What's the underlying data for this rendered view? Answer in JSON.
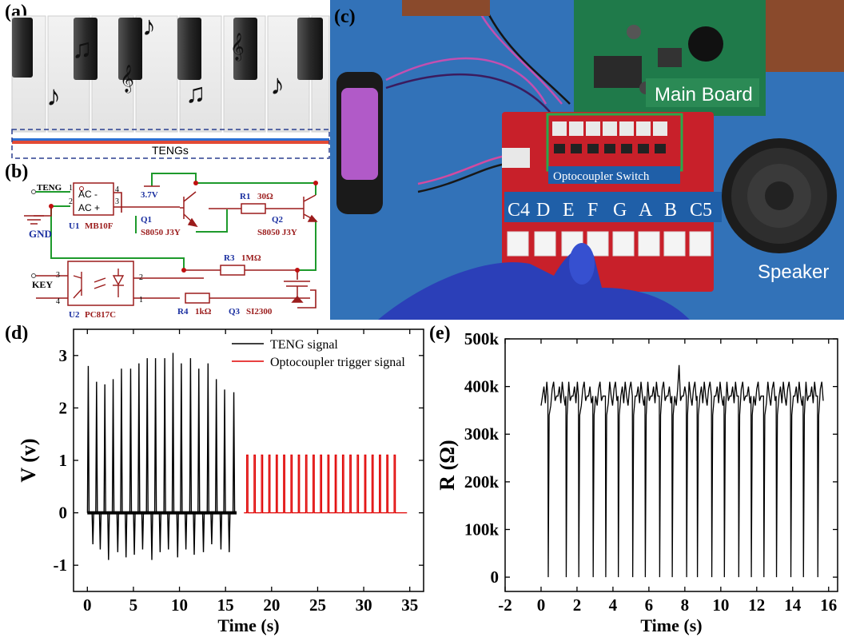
{
  "panel_labels": {
    "a": "(a)",
    "b": "(b)",
    "c": "(c)",
    "d": "(d)",
    "e": "(e)"
  },
  "panel_a": {
    "tengs_label": "TENGs",
    "icons": [
      "eighth-note-icon",
      "beamed-notes-icon",
      "treble-clef-icon"
    ]
  },
  "panel_b": {
    "teng_label": "TENG",
    "gnd_label": "GND",
    "key_label": "KEY",
    "supply_label": "3.7V",
    "u1": {
      "name": "U1",
      "part": "MB10F",
      "pins": [
        "1",
        "2",
        "3",
        "4"
      ],
      "ac_minus": "AC  -",
      "ac_plus": "AC  +"
    },
    "q1": {
      "name": "Q1",
      "part": "S8050 J3Y"
    },
    "q2": {
      "name": "Q2",
      "part": "S8050 J3Y"
    },
    "r1": {
      "name": "R1",
      "value": "30Ω"
    },
    "r3": {
      "name": "R3",
      "value": "1MΩ"
    },
    "r4": {
      "name": "R4",
      "value": "1kΩ"
    },
    "q3": {
      "name": "Q3",
      "part": "SI2300"
    },
    "u2": {
      "name": "U2",
      "part": "PC817C",
      "pins": [
        "1",
        "2",
        "3",
        "4"
      ]
    }
  },
  "panel_c": {
    "main_board_label": "Main Board",
    "optocoupler_label": "Optocoupler Switch",
    "speaker_label": "Speaker",
    "notes": [
      "C4",
      "D",
      "E",
      "F",
      "G",
      "A",
      "B",
      "C5"
    ],
    "colors": {
      "background": "#2f6fb3",
      "pcb_red": "#c8202a",
      "main_board_green": "#1f7a4a",
      "label_bg": "#1f5fa8"
    }
  },
  "chart_data": [
    {
      "panel": "d",
      "type": "line",
      "xlabel": "Time (s)",
      "ylabel": "V (v)",
      "xlim": [
        -1.5,
        36.5
      ],
      "ylim": [
        -1.5,
        3.5
      ],
      "xticks": [
        0,
        5,
        10,
        15,
        20,
        25,
        30,
        35
      ],
      "yticks": [
        -1,
        0,
        1,
        2,
        3
      ],
      "legend_position": "top-right",
      "series": [
        {
          "name": "TENG signal",
          "color": "#000000",
          "x": [
            0.1,
            0.6,
            1.0,
            1.4,
            1.9,
            2.3,
            2.8,
            3.3,
            3.7,
            4.2,
            4.7,
            5.1,
            5.6,
            6.0,
            6.5,
            7.0,
            7.4,
            7.9,
            8.4,
            8.8,
            9.3,
            9.8,
            10.2,
            10.7,
            11.2,
            11.6,
            12.1,
            12.6,
            13.1,
            13.5,
            14.0,
            14.5,
            14.9,
            15.4,
            15.9
          ],
          "peak": [
            2.8,
            -0.6,
            2.5,
            -0.7,
            2.45,
            -0.9,
            2.55,
            -0.75,
            2.75,
            -0.85,
            2.75,
            -0.8,
            2.85,
            -0.7,
            2.95,
            -0.9,
            2.95,
            -0.75,
            2.95,
            -0.7,
            3.05,
            -0.85,
            2.85,
            -0.7,
            2.95,
            -0.8,
            2.75,
            -0.75,
            2.85,
            -0.6,
            2.55,
            -0.7,
            2.35,
            -0.75,
            2.3
          ]
        },
        {
          "name": "Optocoupler trigger signal",
          "color": "#e00000",
          "x": [
            17.3,
            18.1,
            18.9,
            19.7,
            20.5,
            21.3,
            22.1,
            22.9,
            23.7,
            24.5,
            25.3,
            26.1,
            26.9,
            27.7,
            28.5,
            29.3,
            30.1,
            30.9,
            31.7,
            32.5,
            33.3
          ],
          "peak": [
            1.1,
            1.1,
            1.1,
            1.1,
            1.1,
            1.1,
            1.1,
            1.1,
            1.1,
            1.1,
            1.1,
            1.1,
            1.1,
            1.1,
            1.1,
            1.1,
            1.1,
            1.1,
            1.1,
            1.1,
            1.1
          ],
          "baseline": 0
        }
      ]
    },
    {
      "panel": "e",
      "type": "line",
      "xlabel": "Time (s)",
      "ylabel": "R (Ω)",
      "xlim": [
        -2,
        16.5
      ],
      "ylim": [
        -30000,
        500000
      ],
      "xticks": [
        -2,
        0,
        2,
        4,
        6,
        8,
        10,
        12,
        14,
        16
      ],
      "yticks": [
        0,
        100000,
        200000,
        300000,
        400000,
        500000
      ],
      "ytick_labels": [
        "0",
        "100k",
        "200k",
        "300k",
        "400k",
        "500k"
      ],
      "series": [
        {
          "color": "#000000",
          "baseline_high": 380000,
          "dip_times": [
            0.4,
            1.4,
            2.1,
            2.9,
            3.6,
            4.3,
            5.1,
            5.8,
            6.6,
            7.3,
            8.1,
            8.7,
            9.5,
            10.2,
            11.0,
            11.7,
            12.4,
            13.1,
            13.9,
            14.6,
            15.4
          ],
          "dip_value": 0,
          "max_value": 445000
        }
      ]
    }
  ]
}
